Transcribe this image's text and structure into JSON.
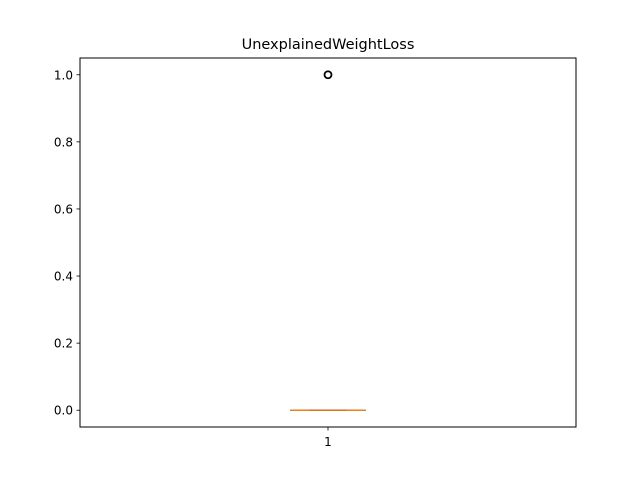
{
  "chart_data": {
    "type": "boxplot",
    "title": "UnexplainedWeightLoss",
    "xlabel": "",
    "ylabel": "",
    "categories": [
      "1"
    ],
    "ylim": [
      -0.05,
      1.05
    ],
    "yticks": [
      0.0,
      0.2,
      0.4,
      0.6,
      0.8,
      1.0
    ],
    "ytick_labels": [
      "0.0",
      "0.2",
      "0.4",
      "0.6",
      "0.8",
      "1.0"
    ],
    "grid": false,
    "boxes": [
      {
        "category": "1",
        "q1": 0.0,
        "median": 0.0,
        "q3": 0.0,
        "whisker_low": 0.0,
        "whisker_high": 0.0,
        "outliers": [
          1.0
        ]
      }
    ],
    "colors": {
      "box": "#000000",
      "median": "#ff7f0e",
      "outlier": "#000000"
    }
  }
}
